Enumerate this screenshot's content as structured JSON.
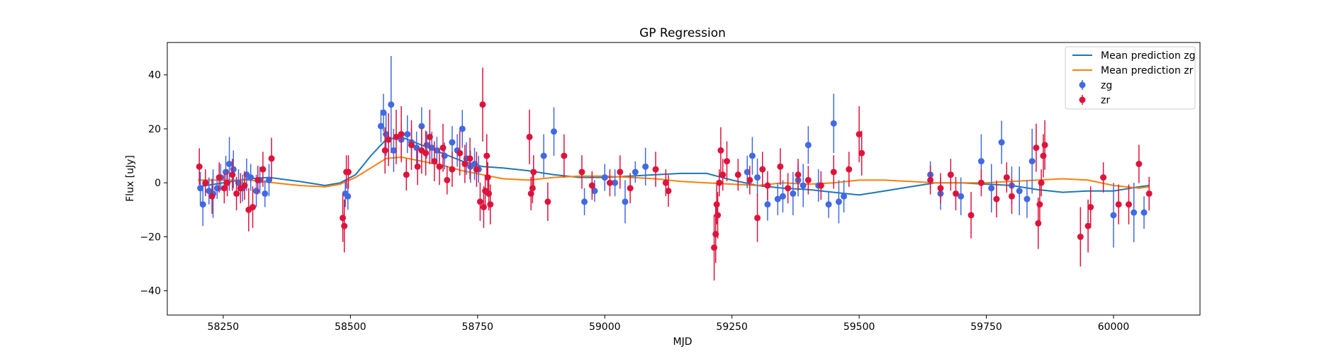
{
  "chart_data": {
    "type": "scatter",
    "title": "GP Regression",
    "xlabel": "MJD",
    "ylabel": "Flux [uJy]",
    "xlim": [
      58140,
      60170
    ],
    "ylim": [
      -49,
      52
    ],
    "xticks": [
      58250,
      58500,
      58750,
      59000,
      59250,
      59500,
      59750,
      60000
    ],
    "yticks": [
      -40,
      -20,
      0,
      20,
      40
    ],
    "legend_position": "top-right",
    "grid": false,
    "legend": [
      {
        "label": "Mean prediction zg",
        "kind": "line",
        "color": "#1f77b4"
      },
      {
        "label": "Mean prediction zr",
        "kind": "line",
        "color": "#ff7f0e"
      },
      {
        "label": "zg",
        "kind": "errorbar",
        "color": "#4169e1"
      },
      {
        "label": "zr",
        "kind": "errorbar",
        "color": "#dc143c"
      }
    ],
    "series": [
      {
        "name": "Mean prediction zg",
        "kind": "line",
        "color": "#1f77b4",
        "x": [
          58200,
          58250,
          58300,
          58340,
          58400,
          58450,
          58480,
          58510,
          58540,
          58570,
          58600,
          58640,
          58680,
          58720,
          58760,
          58800,
          58850,
          58900,
          58950,
          59000,
          59050,
          59100,
          59150,
          59200,
          59250,
          59300,
          59350,
          59400,
          59450,
          59500,
          59550,
          59600,
          59650,
          59700,
          59750,
          59800,
          59850,
          59900,
          59950,
          60000,
          60050,
          60070
        ],
        "y": [
          -1.5,
          0,
          1.5,
          2,
          0.5,
          -1,
          0,
          3,
          10,
          16,
          17,
          14,
          11,
          8,
          6,
          5.5,
          4.5,
          3,
          2,
          2,
          2.5,
          3,
          3.5,
          3.5,
          1,
          -1,
          -2,
          -2.5,
          -3.5,
          -4.5,
          -3,
          -1.5,
          0,
          0,
          -0.5,
          -1,
          -2.5,
          -3.5,
          -3,
          -3,
          -1.5,
          -1
        ]
      },
      {
        "name": "Mean prediction zr",
        "kind": "line",
        "color": "#ff7f0e",
        "x": [
          58200,
          58250,
          58300,
          58350,
          58400,
          58450,
          58480,
          58510,
          58540,
          58570,
          58600,
          58640,
          58680,
          58720,
          58760,
          58800,
          58850,
          58900,
          58950,
          59000,
          59050,
          59100,
          59150,
          59200,
          59250,
          59300,
          59350,
          59400,
          59450,
          59500,
          59550,
          59600,
          59650,
          59700,
          59750,
          59800,
          59850,
          59900,
          59950,
          60000,
          60050,
          60070
        ],
        "y": [
          1,
          1,
          1,
          0,
          -1,
          -1.5,
          -0.5,
          2,
          5.5,
          9,
          9.5,
          8,
          6.5,
          4.5,
          3,
          1.5,
          1,
          2,
          2.5,
          2.5,
          2,
          1.5,
          0.5,
          0,
          -0.5,
          -1,
          0,
          -0.5,
          0,
          1,
          1,
          0.5,
          0,
          0,
          0,
          0.5,
          1,
          1.5,
          1,
          -1,
          -2,
          -1.5
        ]
      },
      {
        "name": "zg",
        "kind": "errorbar",
        "color": "#4169e1",
        "x": [
          58205,
          58210,
          58222,
          58230,
          58238,
          58245,
          58255,
          58262,
          58270,
          58280,
          58288,
          58296,
          58304,
          58315,
          58322,
          58332,
          58340,
          58490,
          58495,
          58560,
          58565,
          58570,
          58580,
          58585,
          58600,
          58612,
          58620,
          58630,
          58640,
          58650,
          58660,
          58670,
          58685,
          58700,
          58710,
          58720,
          58728,
          58736,
          58744,
          58752,
          58880,
          58900,
          58960,
          58980,
          59000,
          59020,
          59040,
          59060,
          59080,
          59280,
          59290,
          59300,
          59320,
          59340,
          59350,
          59370,
          59380,
          59390,
          59400,
          59420,
          59440,
          59450,
          59460,
          59470,
          59640,
          59660,
          59700,
          59740,
          59760,
          59780,
          59800,
          59815,
          59830,
          59840,
          60000,
          60040,
          60060
        ],
        "y": [
          -2,
          -8,
          -3,
          -4,
          -2,
          2,
          4,
          7,
          5,
          0,
          -2,
          3,
          2,
          -3,
          1,
          -4,
          1,
          -4,
          -5,
          21,
          26,
          18,
          29,
          12,
          16,
          18,
          15,
          13,
          21,
          14,
          13,
          12,
          10,
          15,
          12,
          20,
          9,
          6,
          7,
          5,
          10,
          19,
          -7,
          -3,
          2,
          0,
          -7,
          4,
          6,
          4,
          10,
          2,
          -8,
          -6,
          -5,
          -4,
          1,
          -1,
          14,
          -1,
          -8,
          22,
          -7,
          -5,
          3,
          -4,
          -5,
          8,
          -2,
          15,
          -1,
          -3,
          -6,
          8,
          -12,
          -11,
          -11
        ],
        "yerr": [
          6,
          8,
          5,
          9,
          4,
          5,
          6,
          10,
          7,
          5,
          5,
          6,
          5,
          6,
          5,
          5,
          6,
          5,
          5,
          6,
          7,
          8,
          18,
          8,
          6,
          7,
          5,
          6,
          7,
          5,
          6,
          5,
          5,
          6,
          6,
          7,
          6,
          6,
          6,
          5,
          8,
          9,
          5,
          4,
          5,
          5,
          8,
          4,
          7,
          6,
          7,
          7,
          6,
          6,
          6,
          8,
          6,
          8,
          7,
          6,
          5,
          11,
          8,
          6,
          5,
          6,
          7,
          10,
          9,
          8,
          7,
          9,
          7,
          12,
          12,
          11,
          6
        ]
      },
      {
        "name": "zr",
        "kind": "errorbar",
        "color": "#dc143c",
        "x": [
          58203,
          58215,
          58228,
          58242,
          58252,
          58258,
          58268,
          58276,
          58284,
          58292,
          58300,
          58308,
          58318,
          58328,
          58345,
          58485,
          58488,
          58492,
          58496,
          58568,
          58575,
          58590,
          58600,
          58610,
          58620,
          58632,
          58640,
          58648,
          58656,
          58665,
          58675,
          58682,
          58690,
          58700,
          58715,
          58725,
          58735,
          58748,
          58755,
          58760,
          58762,
          58765,
          58768,
          58770,
          58772,
          58775,
          58852,
          58855,
          58858,
          58860,
          58888,
          58920,
          58955,
          58975,
          59010,
          59030,
          59050,
          59100,
          59120,
          59125,
          59215,
          59218,
          59220,
          59222,
          59225,
          59228,
          59232,
          59240,
          59262,
          59285,
          59300,
          59310,
          59320,
          59345,
          59360,
          59380,
          59400,
          59425,
          59450,
          59480,
          59500,
          59505,
          59640,
          59660,
          59680,
          59690,
          59720,
          59740,
          59770,
          59790,
          59800,
          59848,
          59852,
          59855,
          59858,
          59862,
          59865,
          59935,
          59950,
          59955,
          59980,
          60010,
          60030,
          60050,
          60070
        ],
        "y": [
          6,
          0,
          -5,
          2,
          -2,
          0,
          3,
          -4,
          -2,
          -1,
          -10,
          -9,
          1,
          5,
          9,
          -13,
          -16,
          4,
          4,
          12,
          16,
          17,
          18,
          3,
          14,
          6,
          12,
          11,
          17,
          8,
          6,
          13,
          1,
          5,
          11,
          7,
          9,
          5,
          -7,
          29,
          -9,
          -3,
          10,
          2,
          -4,
          -8,
          17,
          -4,
          -2,
          4,
          -7,
          10,
          4,
          -1,
          0,
          4,
          -2,
          5,
          0,
          -3,
          -24,
          -19,
          -8,
          -12,
          0,
          12,
          3,
          8,
          3,
          1,
          -13,
          5,
          -1,
          6,
          -2,
          3,
          1,
          -1,
          4,
          5,
          18,
          11,
          1,
          -2,
          3,
          -4,
          -12,
          0,
          -6,
          2,
          -5,
          13,
          -15,
          -8,
          0,
          10,
          14,
          -20,
          -16,
          -9,
          2,
          -8,
          -8,
          7,
          -4
        ]
      }
    ]
  }
}
